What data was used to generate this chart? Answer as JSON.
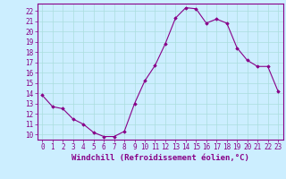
{
  "x": [
    0,
    1,
    2,
    3,
    4,
    5,
    6,
    7,
    8,
    9,
    10,
    11,
    12,
    13,
    14,
    15,
    16,
    17,
    18,
    19,
    20,
    21,
    22,
    23
  ],
  "y": [
    13.8,
    12.7,
    12.5,
    11.5,
    11.0,
    10.2,
    9.8,
    9.8,
    10.3,
    13.0,
    15.2,
    16.7,
    18.8,
    21.3,
    22.3,
    22.2,
    20.8,
    21.2,
    20.8,
    18.4,
    17.2,
    16.6,
    16.6,
    14.2
  ],
  "line_color": "#880088",
  "marker": "D",
  "marker_size": 1.8,
  "bg_color": "#cceeff",
  "grid_color": "#aadddd",
  "xlabel": "Windchill (Refroidissement éolien,°C)",
  "xlabel_fontsize": 6.5,
  "xlabel_color": "#880088",
  "ylabel_ticks": [
    10,
    11,
    12,
    13,
    14,
    15,
    16,
    17,
    18,
    19,
    20,
    21,
    22
  ],
  "xlim": [
    -0.5,
    23.5
  ],
  "ylim": [
    9.5,
    22.7
  ],
  "tick_fontsize": 5.5,
  "tick_color": "#880088",
  "spine_color": "#880088"
}
